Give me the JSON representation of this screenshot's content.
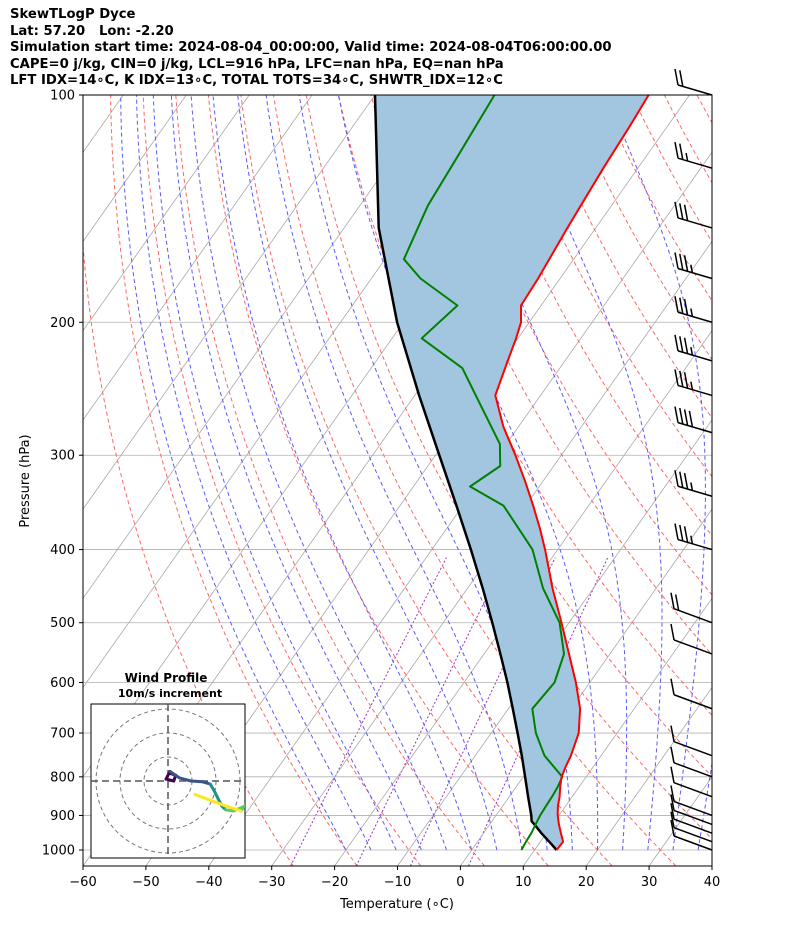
{
  "header": {
    "lines": [
      "SkewTLogP Dyce",
      "Lat: 57.20   Lon: -2.20",
      "Simulation start time: 2024-08-04_00:00:00, Valid time: 2024-08-04T06:00:00.00",
      "CAPE=0 j/kg, CIN=0 j/kg, LCL=916 hPa, LFC=nan hPa, EQ=nan hPa",
      "LFT IDX=14∘C, K IDX=13∘C, TOTAL TOTS=34∘C, SHWTR_IDX=12∘C"
    ]
  },
  "chart_data": {
    "type": "line",
    "subtype": "skew-t log-p",
    "xlabel": "Temperature (∘C)",
    "ylabel": "Pressure (hPa)",
    "xlim": [
      -60,
      40
    ],
    "ylim": [
      1050,
      100
    ],
    "y_scale": "log",
    "x_ticks": [
      "−60",
      "−50",
      "−40",
      "−30",
      "−20",
      "−10",
      "0",
      "10",
      "20",
      "30",
      "40"
    ],
    "x_tick_values": [
      -60,
      -50,
      -40,
      -30,
      -20,
      -10,
      0,
      10,
      20,
      30,
      40
    ],
    "y_ticks": [
      "1000",
      "900",
      "800",
      "700",
      "600",
      "500",
      "400",
      "300",
      "200",
      "100"
    ],
    "y_tick_values": [
      1000,
      900,
      800,
      700,
      600,
      500,
      400,
      300,
      200,
      100
    ],
    "grid": true,
    "colors": {
      "temperature": "#ff0000",
      "dewpoint": "#008000",
      "parcel": "#000000",
      "shading": "#a2c6df",
      "dry_adiabats": "#ff6666",
      "moist_adiabats": "#5a5aff",
      "mixing_ratio": "#9933bb",
      "isotherms": "#a9a9a9"
    },
    "series": [
      {
        "key": "temperature",
        "points": [
          [
            1000,
            13.5
          ],
          [
            975,
            13.6
          ],
          [
            950,
            12.3
          ],
          [
            925,
            11.0
          ],
          [
            900,
            9.8
          ],
          [
            875,
            8.8
          ],
          [
            850,
            8.0
          ],
          [
            825,
            7.0
          ],
          [
            800,
            6.1
          ],
          [
            775,
            5.6
          ],
          [
            750,
            5.2
          ],
          [
            700,
            3.9
          ],
          [
            650,
            1.4
          ],
          [
            600,
            -2.2
          ],
          [
            550,
            -6.5
          ],
          [
            500,
            -11.2
          ],
          [
            450,
            -16.5
          ],
          [
            400,
            -22.0
          ],
          [
            375,
            -25.2
          ],
          [
            350,
            -28.8
          ],
          [
            325,
            -32.8
          ],
          [
            300,
            -37.3
          ],
          [
            275,
            -42.4
          ],
          [
            250,
            -47.2
          ],
          [
            225,
            -49.1
          ],
          [
            210,
            -50.3
          ],
          [
            200,
            -51.3
          ],
          [
            190,
            -53.2
          ],
          [
            175,
            -53.5
          ],
          [
            150,
            -54.5
          ],
          [
            125,
            -55.5
          ],
          [
            110,
            -56.0
          ],
          [
            100,
            -56.5
          ]
        ]
      },
      {
        "key": "dewpoint",
        "points": [
          [
            1000,
            7.9
          ],
          [
            975,
            7.7
          ],
          [
            950,
            7.6
          ],
          [
            925,
            7.3
          ],
          [
            900,
            7.0
          ],
          [
            875,
            6.9
          ],
          [
            850,
            6.8
          ],
          [
            825,
            6.6
          ],
          [
            800,
            6.2
          ],
          [
            750,
            1.0
          ],
          [
            700,
            -2.9
          ],
          [
            650,
            -6.2
          ],
          [
            600,
            -5.6
          ],
          [
            550,
            -7.3
          ],
          [
            500,
            -11.5
          ],
          [
            450,
            -18.0
          ],
          [
            400,
            -24.0
          ],
          [
            350,
            -33.5
          ],
          [
            330,
            -41.0
          ],
          [
            310,
            -38.5
          ],
          [
            290,
            -41.0
          ],
          [
            250,
            -50.3
          ],
          [
            230,
            -55.5
          ],
          [
            210,
            -65.3
          ],
          [
            190,
            -63.3
          ],
          [
            175,
            -72.2
          ],
          [
            165,
            -77.0
          ],
          [
            140,
            -79.2
          ],
          [
            120,
            -80.0
          ],
          [
            100,
            -81.0
          ]
        ]
      },
      {
        "key": "parcel",
        "points": [
          [
            1000,
            13.5
          ],
          [
            975,
            11.4
          ],
          [
            950,
            9.2
          ],
          [
            925,
            7.1
          ],
          [
            916,
            6.3
          ],
          [
            900,
            5.6
          ],
          [
            850,
            3.0
          ],
          [
            800,
            0.3
          ],
          [
            750,
            -2.6
          ],
          [
            700,
            -5.8
          ],
          [
            650,
            -9.3
          ],
          [
            600,
            -13.1
          ],
          [
            550,
            -17.4
          ],
          [
            500,
            -22.2
          ],
          [
            450,
            -27.6
          ],
          [
            400,
            -33.8
          ],
          [
            350,
            -41.0
          ],
          [
            300,
            -49.4
          ],
          [
            250,
            -59.3
          ],
          [
            200,
            -71.0
          ],
          [
            150,
            -84.5
          ],
          [
            100,
            -100.0
          ]
        ]
      }
    ],
    "wind_barbs": [
      {
        "p": 100,
        "speed": 20
      },
      {
        "p": 125,
        "speed": 25
      },
      {
        "p": 150,
        "speed": 30
      },
      {
        "p": 175,
        "speed": 35
      },
      {
        "p": 200,
        "speed": 35
      },
      {
        "p": 225,
        "speed": 35
      },
      {
        "p": 250,
        "speed": 35
      },
      {
        "p": 280,
        "speed": 40
      },
      {
        "p": 340,
        "speed": 35
      },
      {
        "p": 400,
        "speed": 35
      },
      {
        "p": 500,
        "speed": 20
      },
      {
        "p": 550,
        "speed": 10
      },
      {
        "p": 650,
        "speed": 10
      },
      {
        "p": 750,
        "speed": 10
      },
      {
        "p": 800,
        "speed": 10
      },
      {
        "p": 850,
        "speed": 10
      },
      {
        "p": 900,
        "speed": 10
      },
      {
        "p": 925,
        "speed": 10
      },
      {
        "p": 950,
        "speed": 10
      },
      {
        "p": 975,
        "speed": 10
      },
      {
        "p": 1000,
        "speed": 10
      }
    ],
    "inset": {
      "title": "Wind Profile",
      "subtitle": "10m/s increment",
      "rings": [
        10,
        20,
        30
      ],
      "hodograph_colors": [
        "#440154",
        "#3b528b",
        "#21918c",
        "#5ec962",
        "#fde725"
      ],
      "points": [
        [
          0.5,
          2.0
        ],
        [
          2,
          1.5
        ],
        [
          1.5,
          0.0
        ],
        [
          -0.5,
          0.5
        ],
        [
          0.5,
          2.5
        ],
        [
          3,
          0.8
        ],
        [
          6,
          0.0
        ],
        [
          9,
          -0.2
        ],
        [
          11,
          -0.8
        ],
        [
          12,
          -2.5
        ],
        [
          13,
          -4.5
        ],
        [
          14,
          -6.5
        ],
        [
          15,
          -7.5
        ],
        [
          17,
          -7.8
        ],
        [
          19,
          -7.0
        ],
        [
          20,
          -6.5
        ],
        [
          19,
          -7.8
        ],
        [
          15,
          -6.5
        ],
        [
          11,
          -5.0
        ],
        [
          7,
          -3.5
        ]
      ]
    }
  }
}
